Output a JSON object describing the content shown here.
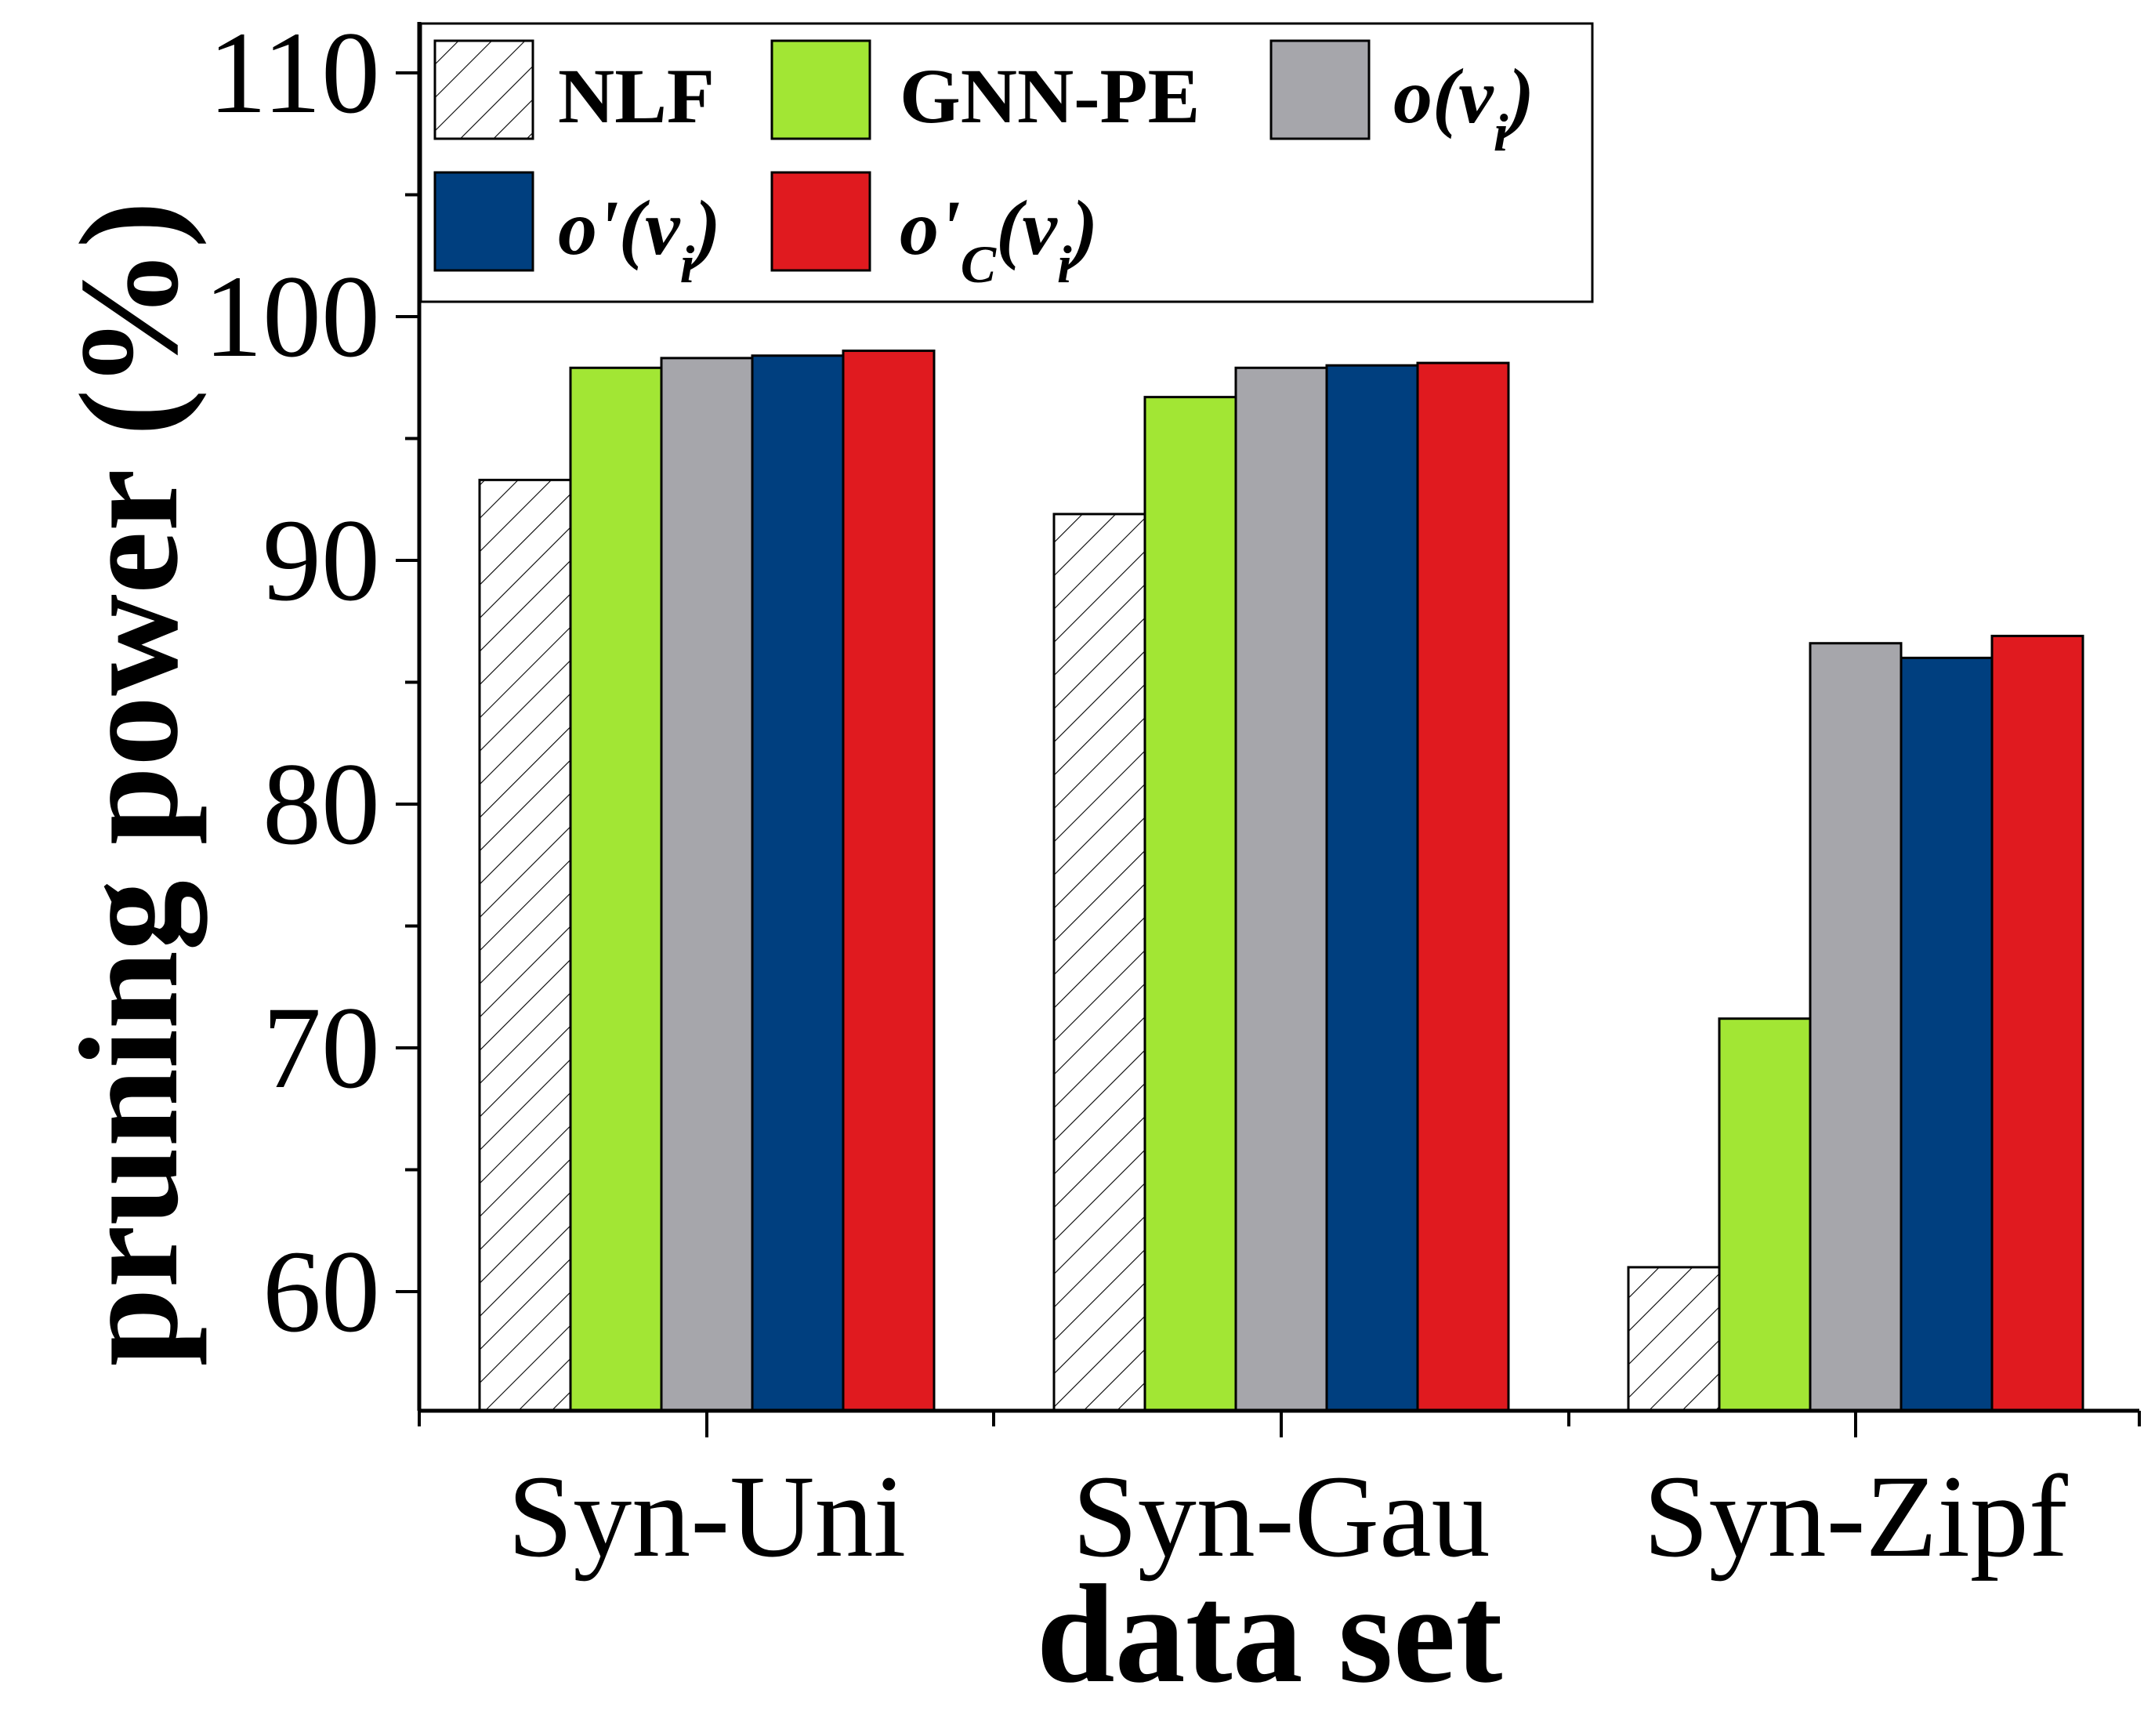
{
  "chart_data": {
    "type": "bar",
    "xlabel": "data set",
    "ylabel": "pruning power (%)",
    "ylim": [
      55,
      112
    ],
    "yticks": [
      60,
      70,
      80,
      90,
      100,
      110
    ],
    "categories": [
      "Syn-Uni",
      "Syn-Gau",
      "Syn-Zipf"
    ],
    "series": [
      {
        "name": "NLF",
        "color": "#ffffff",
        "pattern": "hatch",
        "values": [
          93.3,
          91.9,
          61.0
        ]
      },
      {
        "name": "GNN-PE",
        "color": "#a2e634",
        "values": [
          97.9,
          96.7,
          71.2
        ]
      },
      {
        "name": "o(vi)",
        "color": "#a6a6ab",
        "values": [
          98.3,
          97.9,
          86.6
        ]
      },
      {
        "name": "o'(vi)",
        "color": "#003f7f",
        "values": [
          98.4,
          98.0,
          86.0
        ]
      },
      {
        "name": "o'C(vi)",
        "color": "#e01a1f",
        "values": [
          98.6,
          98.1,
          86.9
        ]
      }
    ],
    "legend": {
      "position": "top",
      "entries": [
        {
          "base": "NLF",
          "sub": "",
          "italic": false
        },
        {
          "base": "GNN-PE",
          "sub": "",
          "italic": false
        },
        {
          "base": "o",
          "primeSub": "",
          "paren": "(v",
          "idx": "i",
          "close": ")",
          "italic": true
        },
        {
          "base": "o'",
          "primeSub": "",
          "paren": "(v",
          "idx": "i",
          "close": ")",
          "italic": true
        },
        {
          "base": "o'",
          "primeSub": "C",
          "paren": "(v",
          "idx": "i",
          "close": ")",
          "italic": true
        }
      ]
    }
  }
}
